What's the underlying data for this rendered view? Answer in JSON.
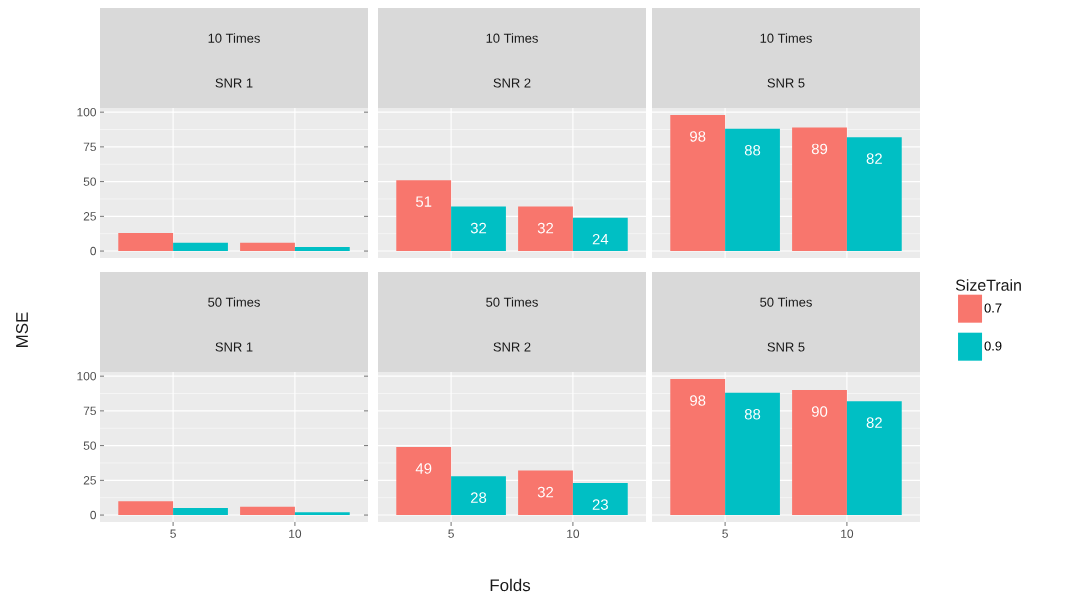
{
  "chart_data": [
    {
      "type": "bar",
      "title": "10 Times",
      "subtitle": "SNR 1",
      "categories": [
        "5",
        "10"
      ],
      "ylim": [
        -5,
        103
      ],
      "yticks": [
        0,
        25,
        50,
        75,
        100
      ],
      "grid": true,
      "tick_labels": "y",
      "series": [
        {
          "color": "#f8766d",
          "values": [
            13,
            6
          ]
        },
        {
          "color": "#00bfc4",
          "values": [
            6,
            3
          ]
        }
      ]
    },
    {
      "type": "bar",
      "title": "10 Times",
      "subtitle": "SNR 2",
      "categories": [
        "5",
        "10"
      ],
      "ylim": [
        -5,
        103
      ],
      "yticks": [
        0,
        25,
        50,
        75,
        100
      ],
      "grid": true,
      "tick_labels": false,
      "data_labels": true,
      "series": [
        {
          "color": "#f8766d",
          "values": [
            51,
            32
          ]
        },
        {
          "color": "#00bfc4",
          "values": [
            32,
            24
          ]
        }
      ]
    },
    {
      "type": "bar",
      "title": "10 Times",
      "subtitle": "SNR 5",
      "categories": [
        "5",
        "10"
      ],
      "ylim": [
        -5,
        103
      ],
      "yticks": [
        0,
        25,
        50,
        75,
        100
      ],
      "grid": true,
      "tick_labels": false,
      "data_labels": true,
      "series": [
        {
          "color": "#f8766d",
          "values": [
            98,
            89
          ]
        },
        {
          "color": "#00bfc4",
          "values": [
            88,
            82
          ]
        }
      ]
    },
    {
      "type": "bar",
      "title": "50 Times",
      "subtitle": "SNR 1",
      "ylabel": "MSE",
      "categories": [
        "5",
        "10"
      ],
      "ylim": [
        -5,
        103
      ],
      "yticks": [
        0,
        25,
        50,
        75,
        100
      ],
      "grid": true,
      "series": [
        {
          "color": "#f8766d",
          "values": [
            10,
            6
          ]
        },
        {
          "color": "#00bfc4",
          "values": [
            5,
            2
          ]
        }
      ]
    },
    {
      "type": "bar",
      "title": "50 Times",
      "subtitle": "SNR 2",
      "xlabel": "Folds",
      "categories": [
        "5",
        "10"
      ],
      "ylim": [
        -5,
        103
      ],
      "yticks": [
        0,
        25,
        50,
        75,
        100
      ],
      "grid": true,
      "tick_labels": "x",
      "data_labels": true,
      "series": [
        {
          "color": "#f8766d",
          "values": [
            49,
            32
          ]
        },
        {
          "color": "#00bfc4",
          "values": [
            28,
            23
          ]
        }
      ]
    },
    {
      "type": "bar",
      "title": "50 Times",
      "subtitle": "SNR 5",
      "categories": [
        "5",
        "10"
      ],
      "ylim": [
        -5,
        103
      ],
      "yticks": [
        0,
        25,
        50,
        75,
        100
      ],
      "grid": true,
      "tick_labels": "x",
      "data_labels": true,
      "legend": "right",
      "legend_title": "SizeTrain",
      "series": [
        {
          "name": "0.7",
          "color": "#f8766d",
          "values": [
            98,
            90
          ]
        },
        {
          "name": "0.9",
          "color": "#00bfc4",
          "values": [
            88,
            82
          ]
        }
      ]
    }
  ]
}
